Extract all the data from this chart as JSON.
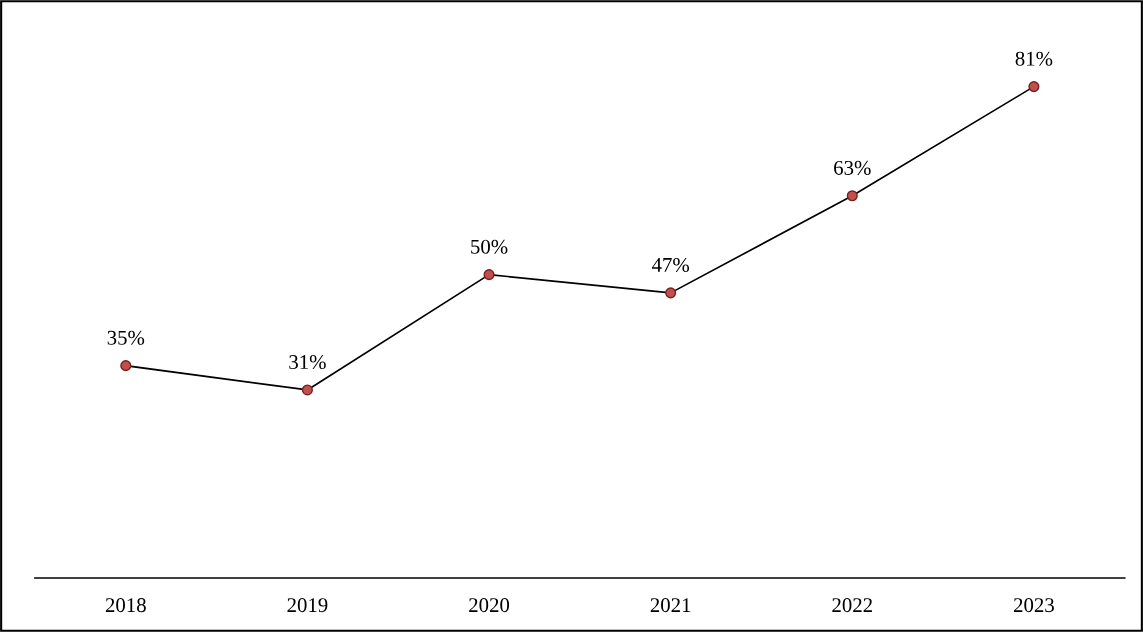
{
  "chart_data": {
    "type": "line",
    "categories": [
      "2018",
      "2019",
      "2020",
      "2021",
      "2022",
      "2023"
    ],
    "series": [
      {
        "color": "#000000",
        "values": [
          35,
          31,
          50,
          47,
          63,
          81
        ],
        "value_labels": [
          "35%",
          "31%",
          "50%",
          "47%",
          "63%",
          "81%"
        ]
      }
    ],
    "ylim": [
      0,
      95
    ],
    "tick_labels": "x",
    "grid": false,
    "legend": false,
    "marker": "circle",
    "line_style": "solid"
  }
}
